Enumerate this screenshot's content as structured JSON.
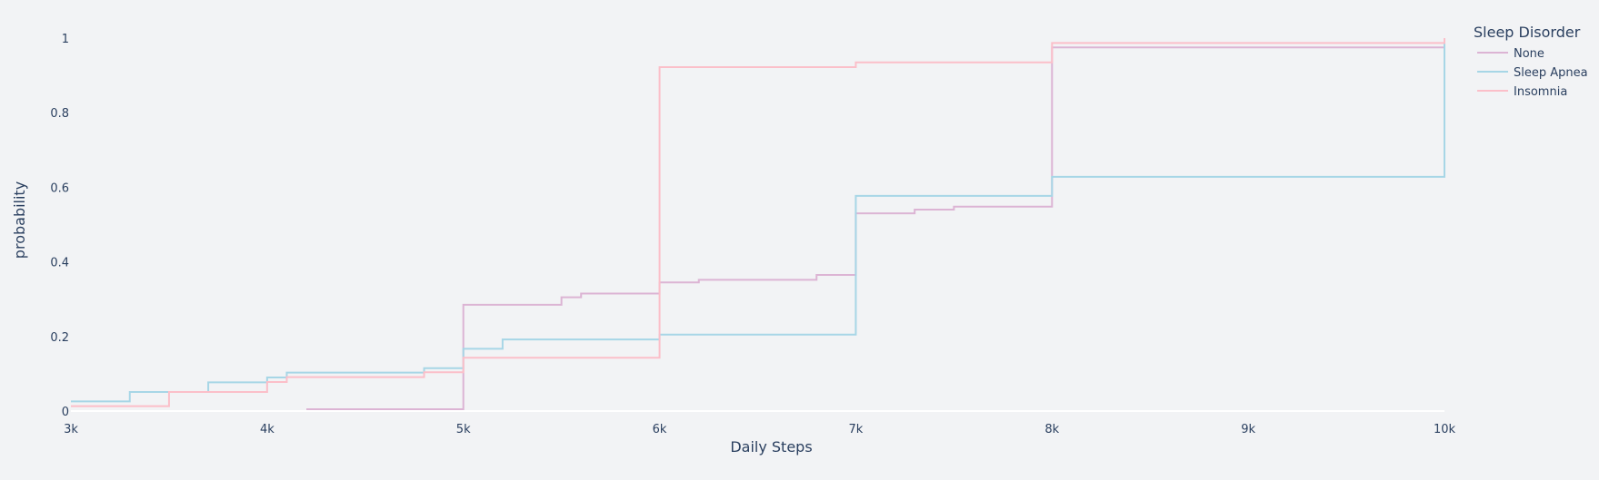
{
  "chart_data": {
    "type": "line",
    "line_shape": "step",
    "title": "",
    "xlabel": "Daily Steps",
    "ylabel": "probability",
    "xlim": [
      3000,
      10000
    ],
    "ylim": [
      0,
      1
    ],
    "x_ticks": [
      3000,
      4000,
      5000,
      6000,
      7000,
      8000,
      9000,
      10000
    ],
    "x_tick_labels": [
      "3k",
      "4k",
      "5k",
      "6k",
      "7k",
      "8k",
      "9k",
      "10k"
    ],
    "y_ticks": [
      0,
      0.2,
      0.4,
      0.6,
      0.8,
      1
    ],
    "y_tick_labels": [
      "0",
      "0.2",
      "0.4",
      "0.6",
      "0.8",
      "1"
    ],
    "grid": false,
    "legend": {
      "title": "Sleep Disorder",
      "position": "top-right"
    },
    "series": [
      {
        "name": "None",
        "color": "#dcb4d4",
        "x": [
          4200,
          5000,
          5500,
          5600,
          6000,
          6200,
          6800,
          7000,
          7300,
          7500,
          8000,
          10000
        ],
        "y": [
          0.005,
          0.285,
          0.305,
          0.315,
          0.345,
          0.352,
          0.365,
          0.53,
          0.54,
          0.548,
          0.975,
          1.0
        ]
      },
      {
        "name": "Sleep Apnea",
        "color": "#a7d6e6",
        "x": [
          3000,
          3300,
          3700,
          4000,
          4100,
          4800,
          5000,
          5200,
          6000,
          7000,
          8000,
          10000
        ],
        "y": [
          0.026,
          0.051,
          0.077,
          0.09,
          0.103,
          0.115,
          0.167,
          0.192,
          0.205,
          0.577,
          0.628,
          1.0
        ]
      },
      {
        "name": "Insomnia",
        "color": "#fbbfc9",
        "x": [
          3000,
          3500,
          4000,
          4100,
          4800,
          5000,
          6000,
          7000,
          8000,
          10000
        ],
        "y": [
          0.013,
          0.051,
          0.078,
          0.091,
          0.104,
          0.143,
          0.922,
          0.935,
          0.987,
          1.0
        ]
      }
    ]
  }
}
